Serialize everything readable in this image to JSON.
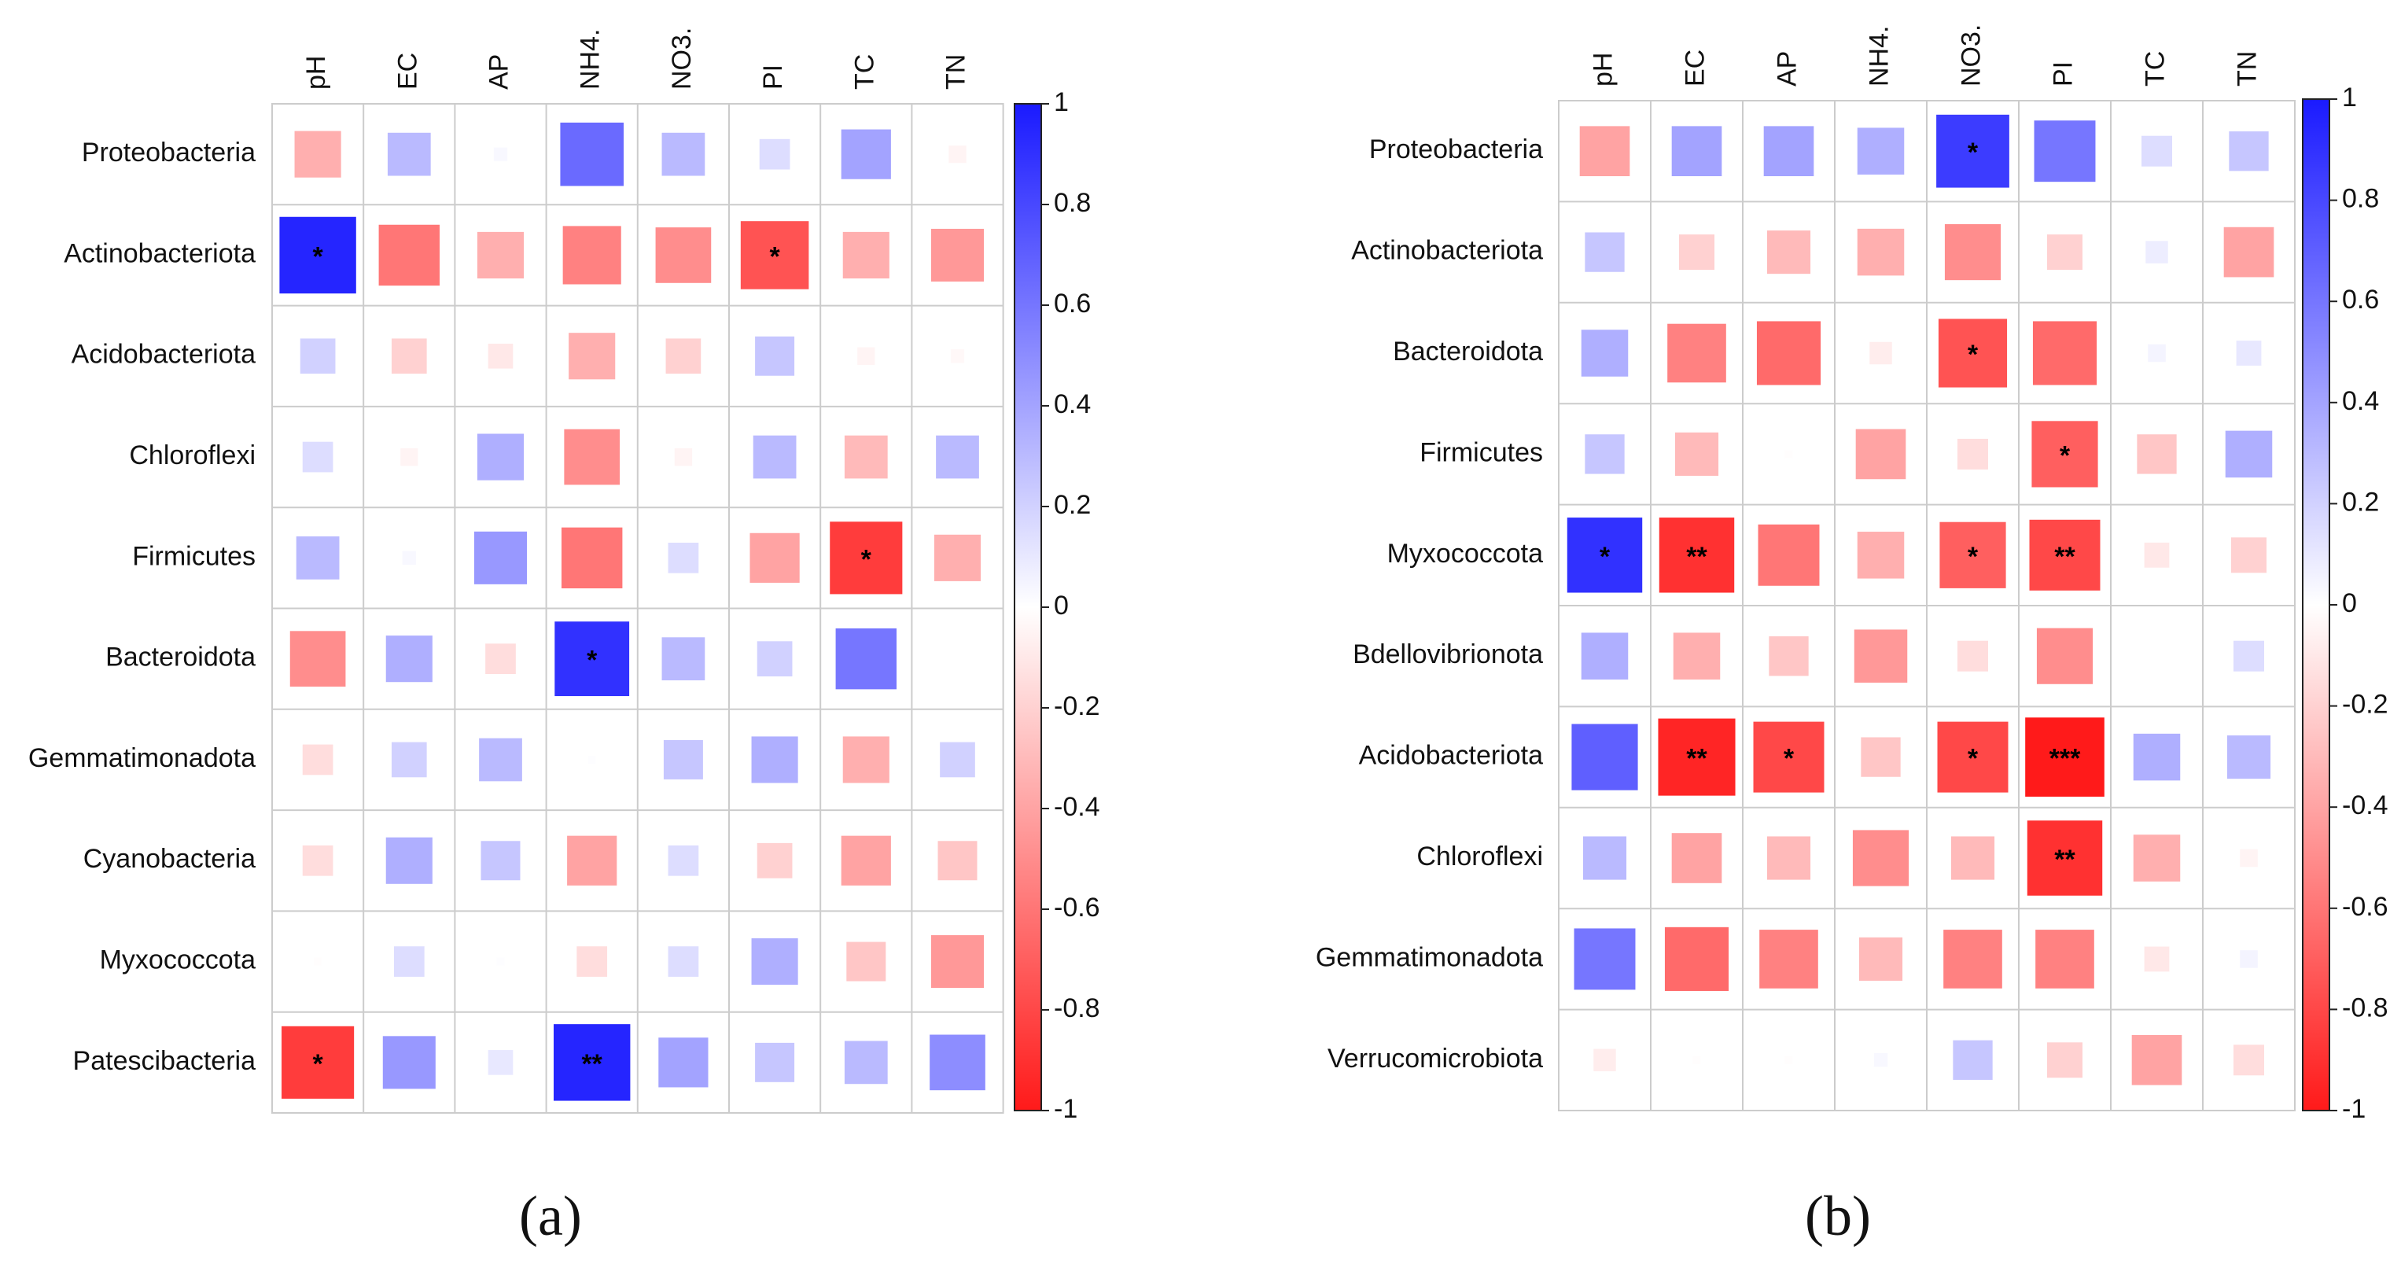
{
  "figure": {
    "panel_labels": [
      "(a)",
      "(b)"
    ]
  },
  "colors": {
    "positive": "#1a1aff",
    "negative": "#ff1a1a",
    "grid": "#cccccc",
    "text": "#111111"
  },
  "chart_data": [
    {
      "type": "heatmap",
      "panel": "(a)",
      "columns": [
        "pH",
        "EC",
        "AP",
        "NH4.",
        "NO3.",
        "PI",
        "TC",
        "TN"
      ],
      "rows": [
        "Proteobacteria",
        "Actinobacteriota",
        "Acidobacteriota",
        "Chloroflexi",
        "Firmicutes",
        "Bacteroidota",
        "Gemmatimonadota",
        "Cyanobacteria",
        "Myxococcota",
        "Patescibacteria"
      ],
      "values": [
        [
          -0.35,
          0.3,
          0.03,
          0.65,
          0.3,
          0.15,
          0.4,
          -0.05
        ],
        [
          0.95,
          -0.6,
          -0.35,
          -0.55,
          -0.5,
          -0.75,
          -0.35,
          -0.45
        ],
        [
          0.2,
          -0.2,
          -0.1,
          -0.35,
          -0.2,
          0.25,
          -0.05,
          -0.03
        ],
        [
          0.15,
          -0.05,
          0.35,
          -0.5,
          -0.05,
          0.3,
          -0.3,
          0.3
        ],
        [
          0.3,
          0.03,
          0.45,
          -0.6,
          0.15,
          -0.4,
          -0.85,
          -0.35
        ],
        [
          -0.5,
          0.35,
          -0.15,
          0.9,
          0.3,
          0.2,
          0.6,
          0.0
        ],
        [
          -0.15,
          0.2,
          0.3,
          0.01,
          0.25,
          0.35,
          -0.35,
          0.2
        ],
        [
          -0.15,
          0.35,
          0.25,
          -0.4,
          0.15,
          -0.2,
          -0.4,
          -0.25
        ],
        [
          -0.01,
          0.15,
          0.01,
          -0.15,
          0.15,
          0.35,
          -0.25,
          -0.45
        ],
        [
          -0.85,
          0.45,
          0.1,
          0.95,
          0.4,
          0.25,
          0.3,
          0.5
        ]
      ],
      "significance": [
        [
          "",
          "",
          "",
          "",
          "",
          "",
          "",
          ""
        ],
        [
          "*",
          "",
          "",
          "",
          "",
          "*",
          "",
          ""
        ],
        [
          "",
          "",
          "",
          "",
          "",
          "",
          "",
          ""
        ],
        [
          "",
          "",
          "",
          "",
          "",
          "",
          "",
          ""
        ],
        [
          "",
          "",
          "",
          "",
          "",
          "",
          "*",
          ""
        ],
        [
          "",
          "",
          "",
          "*",
          "",
          "",
          "",
          ""
        ],
        [
          "",
          "",
          "",
          "",
          "",
          "",
          "",
          ""
        ],
        [
          "",
          "",
          "",
          "",
          "",
          "",
          "",
          ""
        ],
        [
          "",
          "",
          "",
          "",
          "",
          "",
          "",
          ""
        ],
        [
          "*",
          "",
          "",
          "**",
          "",
          "",
          "",
          ""
        ]
      ],
      "colorbar": {
        "range": [
          -1,
          1
        ],
        "ticks": [
          "1",
          "0.8",
          "0.6",
          "0.4",
          "0.2",
          "0",
          "-0.2",
          "-0.4",
          "-0.6",
          "-0.8",
          "-1"
        ]
      }
    },
    {
      "type": "heatmap",
      "panel": "(b)",
      "columns": [
        "pH",
        "EC",
        "AP",
        "NH4.",
        "NO3.",
        "PI",
        "TC",
        "TN"
      ],
      "rows": [
        "Proteobacteria",
        "Actinobacteriota",
        "Bacteroidota",
        "Firmicutes",
        "Myxococcota",
        "Bdellovibrionota",
        "Acidobacteriota",
        "Chloroflexi",
        "Gemmatimonadota",
        "Verrucomicrobiota"
      ],
      "values": [
        [
          -0.4,
          0.4,
          0.4,
          0.35,
          0.85,
          0.6,
          0.15,
          0.25
        ],
        [
          0.25,
          -0.2,
          -0.3,
          -0.35,
          -0.5,
          -0.2,
          0.08,
          -0.4
        ],
        [
          0.35,
          -0.55,
          -0.65,
          -0.08,
          -0.75,
          -0.65,
          0.05,
          0.1
        ],
        [
          0.25,
          -0.3,
          -0.01,
          -0.4,
          -0.15,
          -0.7,
          -0.25,
          0.35
        ],
        [
          0.9,
          -0.9,
          -0.6,
          -0.35,
          -0.7,
          -0.8,
          -0.1,
          -0.2
        ],
        [
          0.35,
          -0.35,
          -0.25,
          -0.45,
          -0.15,
          -0.5,
          0.0,
          0.15
        ],
        [
          0.7,
          -0.95,
          -0.8,
          -0.25,
          -0.8,
          -1.0,
          0.35,
          0.3
        ],
        [
          0.3,
          -0.4,
          -0.3,
          -0.5,
          -0.3,
          -0.9,
          -0.35,
          -0.05
        ],
        [
          0.6,
          -0.65,
          -0.55,
          -0.3,
          -0.55,
          -0.55,
          -0.1,
          0.05
        ],
        [
          -0.08,
          -0.01,
          -0.01,
          0.03,
          0.25,
          -0.2,
          -0.4,
          -0.15
        ]
      ],
      "significance": [
        [
          "",
          "",
          "",
          "",
          "*",
          "",
          "",
          ""
        ],
        [
          "",
          "",
          "",
          "",
          "",
          "",
          "",
          ""
        ],
        [
          "",
          "",
          "",
          "",
          "*",
          "",
          "",
          ""
        ],
        [
          "",
          "",
          "",
          "",
          "",
          "*",
          "",
          ""
        ],
        [
          "*",
          "**",
          "",
          "",
          "*",
          "**",
          "",
          ""
        ],
        [
          "",
          "",
          "",
          "",
          "",
          "",
          "",
          ""
        ],
        [
          "",
          "**",
          "*",
          "",
          "*",
          "***",
          "",
          ""
        ],
        [
          "",
          "",
          "",
          "",
          "",
          "**",
          "",
          ""
        ],
        [
          "",
          "",
          "",
          "",
          "",
          "",
          "",
          ""
        ],
        [
          "",
          "",
          "",
          "",
          "",
          "",
          "",
          ""
        ]
      ],
      "colorbar": {
        "range": [
          -1,
          1
        ],
        "ticks": [
          "1",
          "0.8",
          "0.6",
          "0.4",
          "0.2",
          "0",
          "-0.2",
          "-0.4",
          "-0.6",
          "-0.8",
          "-1"
        ]
      }
    }
  ]
}
